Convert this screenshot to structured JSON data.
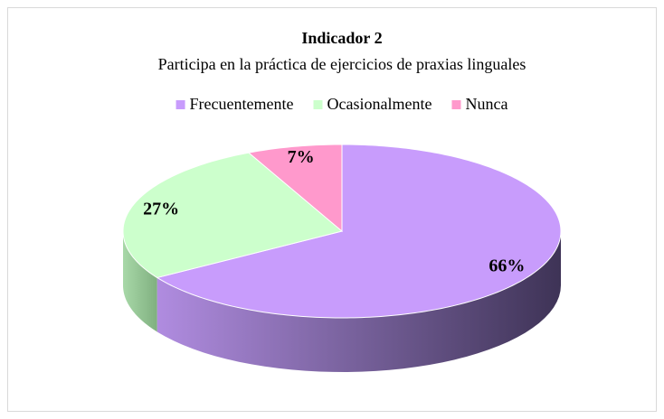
{
  "chart_data": {
    "type": "pie",
    "title": "Indicador 2",
    "subtitle": "Participa en la práctica de ejercicios de praxias linguales",
    "categories": [
      "Frecuentemente",
      "Ocasionalmente",
      "Nunca"
    ],
    "values": [
      66,
      27,
      7
    ],
    "value_labels": [
      "66%",
      "27%",
      "7%"
    ],
    "colors": [
      "#c89cfc",
      "#ccffcc",
      "#ff99cc"
    ],
    "legend": "top"
  }
}
